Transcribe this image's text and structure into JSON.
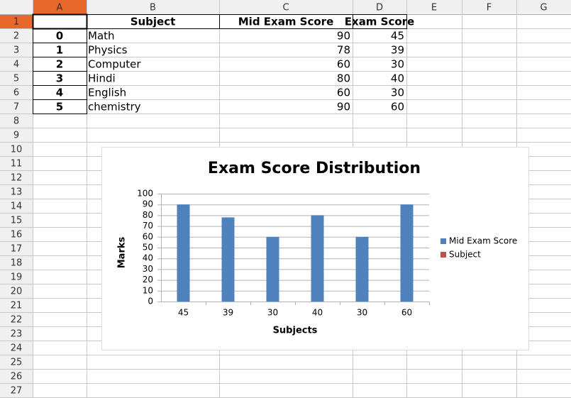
{
  "sheet": {
    "columns": [
      "A",
      "B",
      "C",
      "D",
      "E",
      "F",
      "G"
    ],
    "row_numbers": [
      1,
      2,
      3,
      4,
      5,
      6,
      7,
      8,
      9,
      10,
      11,
      12,
      13,
      14,
      15,
      16,
      17,
      18,
      19,
      20,
      21,
      22,
      23,
      24,
      25,
      26,
      27
    ],
    "header": [
      "Subject",
      "Mid Exam Score",
      "Exam Score"
    ],
    "rows": [
      [
        0,
        "Math",
        90,
        45
      ],
      [
        1,
        "Physics",
        78,
        39
      ],
      [
        2,
        "Computer",
        60,
        30
      ],
      [
        3,
        "Hindi",
        80,
        40
      ],
      [
        4,
        "English",
        60,
        30
      ],
      [
        5,
        "chemistry",
        90,
        60
      ]
    ]
  },
  "chart_data": {
    "type": "bar",
    "title": "Exam Score Distribution",
    "categories": [
      45,
      39,
      30,
      40,
      30,
      60
    ],
    "series": [
      {
        "name": "Mid Exam Score",
        "color": "#4f81bd",
        "values": [
          90,
          78,
          60,
          80,
          60,
          90
        ]
      },
      {
        "name": "Subject",
        "color": "#c0504d"
      }
    ],
    "xlabel": "Subjects",
    "ylabel": "Marks",
    "ylim": [
      0,
      100
    ],
    "yticks": [
      0,
      10,
      20,
      30,
      40,
      50,
      60,
      70,
      80,
      90,
      100
    ],
    "grid": true,
    "legend": "right"
  }
}
